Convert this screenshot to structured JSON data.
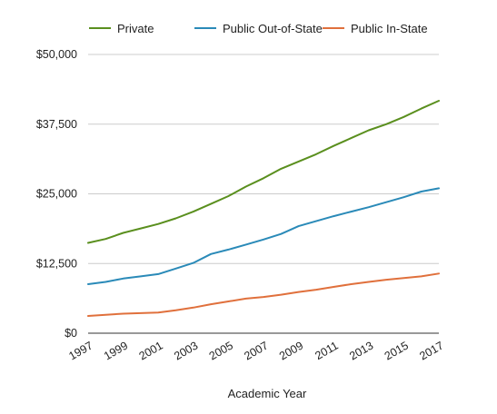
{
  "chart_data": {
    "type": "line",
    "title": "",
    "xlabel": "Academic Year",
    "ylabel": "",
    "xlim": [
      1997,
      2017
    ],
    "ylim": [
      0,
      50000
    ],
    "x": [
      1997,
      1998,
      1999,
      2000,
      2001,
      2002,
      2003,
      2004,
      2005,
      2006,
      2007,
      2008,
      2009,
      2010,
      2011,
      2012,
      2013,
      2014,
      2015,
      2016,
      2017
    ],
    "x_tick_labels": [
      "1997",
      "1999",
      "2001",
      "2003",
      "2005",
      "2007",
      "2009",
      "2011",
      "2013",
      "2015",
      "2017"
    ],
    "x_tick_values": [
      1997,
      1999,
      2001,
      2003,
      2005,
      2007,
      2009,
      2011,
      2013,
      2015,
      2017
    ],
    "y_tick_labels": [
      "$0",
      "$12,500",
      "$25,000",
      "$37,500",
      "$50,000"
    ],
    "y_tick_values": [
      0,
      12500,
      25000,
      37500,
      50000
    ],
    "grid": "horizontal",
    "legend_position": "top",
    "series": [
      {
        "name": "Private",
        "color": "#5a8f1e",
        "values": [
          16200,
          16900,
          18000,
          18800,
          19600,
          20600,
          21800,
          23200,
          24600,
          26300,
          27800,
          29500,
          30800,
          32100,
          33600,
          35000,
          36400,
          37500,
          38800,
          40300,
          41700
        ]
      },
      {
        "name": "Public Out-of-State",
        "color": "#2a8ab8",
        "values": [
          8800,
          9200,
          9800,
          10200,
          10600,
          11600,
          12600,
          14200,
          15000,
          15900,
          16800,
          17800,
          19200,
          20100,
          21000,
          21800,
          22600,
          23500,
          24400,
          25400,
          26000
        ]
      },
      {
        "name": "Public In-State",
        "color": "#e0703c",
        "values": [
          3100,
          3300,
          3500,
          3600,
          3700,
          4100,
          4600,
          5200,
          5700,
          6200,
          6500,
          6900,
          7400,
          7800,
          8300,
          8800,
          9200,
          9600,
          9900,
          10200,
          10700
        ]
      }
    ]
  }
}
